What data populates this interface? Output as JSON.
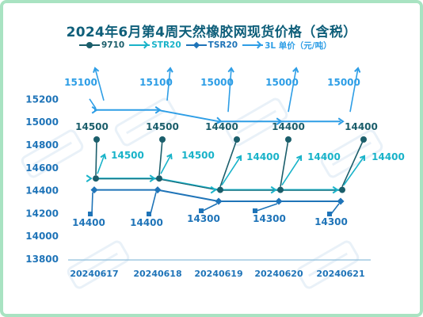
{
  "page": {
    "title": "2024年6月第4周天然橡胶网现货价格（含税）"
  },
  "chart_data": {
    "type": "line",
    "title": "2024年6月第4周天然橡胶网现货价格（含税）",
    "categories": [
      "20240617",
      "20240618",
      "20240619",
      "20240620",
      "20240621"
    ],
    "y_ticks": [
      13800,
      14000,
      14200,
      14400,
      14600,
      14800,
      15000,
      15200
    ],
    "ylim": [
      13800,
      15300
    ],
    "grid": false,
    "legend_position": "top",
    "series": [
      {
        "name": "9710",
        "color": "#1b5e6b",
        "marker": "circle",
        "values": [
          14500,
          14500,
          14400,
          14400,
          14400
        ],
        "labels": [
          "14500",
          "14500",
          "14400",
          "14400",
          "14400"
        ]
      },
      {
        "name": "STR20",
        "color": "#19b3c9",
        "marker": "arrow",
        "values": [
          14500,
          14500,
          14400,
          14400,
          14400
        ],
        "labels": [
          "14500",
          "14500",
          "14400",
          "14400",
          "14400"
        ]
      },
      {
        "name": "TSR20",
        "color": "#1f74b8",
        "marker": "diamond",
        "values": [
          14400,
          14400,
          14300,
          14300,
          14300
        ],
        "labels": [
          "14400",
          "14400",
          "14300",
          "14300",
          "14300"
        ]
      },
      {
        "name": "3L 单价（元/吨）",
        "color": "#2e9ee6",
        "marker": "arrow",
        "values": [
          15100,
          15100,
          15000,
          15000,
          15000
        ],
        "labels": [
          "15100",
          "15100",
          "15000",
          "15000",
          "15000"
        ]
      }
    ]
  }
}
